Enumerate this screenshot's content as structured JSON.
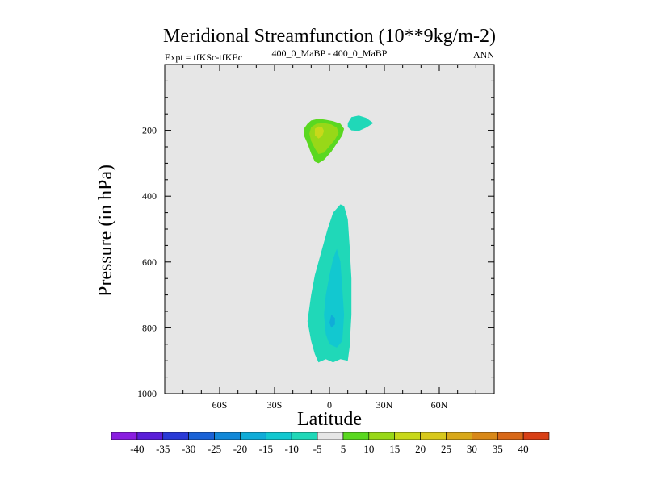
{
  "chart_data": {
    "type": "contour",
    "title": "Meridional Streamfunction (10**9kg/m-2)",
    "subtitle_left": "Expt = tfKSc-tfKEc",
    "subtitle_center": "400_0_MaBP - 400_0_MaBP",
    "subtitle_right": "ANN",
    "xlabel": "Latitude",
    "ylabel": "Pressure (in hPa)",
    "xlim": [
      -90,
      90
    ],
    "ylim": [
      1000,
      0
    ],
    "x_ticks": [
      -60,
      -30,
      0,
      30,
      60
    ],
    "x_tick_labels": [
      "60S",
      "30S",
      "0",
      "30N",
      "60N"
    ],
    "y_ticks": [
      200,
      400,
      600,
      800,
      1000
    ],
    "y_tick_labels": [
      "200",
      "400",
      "600",
      "800",
      "1000"
    ],
    "background_color": "#e6e6e6",
    "colorbar": {
      "levels": [
        -40,
        -35,
        -30,
        -25,
        -20,
        -15,
        -10,
        -5,
        5,
        10,
        15,
        20,
        25,
        30,
        35,
        40
      ],
      "labels": [
        "-40",
        "-35",
        "-30",
        "-25",
        "-20",
        "-15",
        "-10",
        "-5",
        "5",
        "10",
        "15",
        "20",
        "25",
        "30",
        "35",
        "40"
      ],
      "colors": [
        "#8a1ee0",
        "#5a1ed8",
        "#2a3ad6",
        "#1a62d6",
        "#1288d8",
        "#10acd8",
        "#12c8d0",
        "#20d8b8",
        "#e6e6e6",
        "#5ad820",
        "#98d818",
        "#c8d81a",
        "#d8c81c",
        "#d8a81a",
        "#d88818",
        "#d86818",
        "#d84016"
      ]
    },
    "features": [
      {
        "name": "positive-cell",
        "color": "#5ad820",
        "polygon": [
          [
            -12,
            180
          ],
          [
            -10,
            170
          ],
          [
            -6,
            165
          ],
          [
            -2,
            168
          ],
          [
            2,
            172
          ],
          [
            6,
            180
          ],
          [
            8,
            195
          ],
          [
            7,
            215
          ],
          [
            4,
            240
          ],
          [
            1,
            265
          ],
          [
            -3,
            290
          ],
          [
            -6,
            300
          ],
          [
            -8,
            295
          ],
          [
            -10,
            270
          ],
          [
            -12,
            240
          ],
          [
            -14,
            215
          ],
          [
            -14,
            195
          ]
        ]
      },
      {
        "name": "positive-cell-inner",
        "color": "#98d818",
        "polygon": [
          [
            -10,
            190
          ],
          [
            -7,
            180
          ],
          [
            -3,
            178
          ],
          [
            1,
            182
          ],
          [
            4,
            192
          ],
          [
            5,
            208
          ],
          [
            3,
            228
          ],
          [
            0,
            248
          ],
          [
            -3,
            268
          ],
          [
            -6,
            272
          ],
          [
            -8,
            255
          ],
          [
            -10,
            232
          ],
          [
            -11,
            210
          ]
        ]
      },
      {
        "name": "positive-cell-core",
        "color": "#c8d81a",
        "polygon": [
          [
            -8,
            195
          ],
          [
            -6,
            188
          ],
          [
            -4,
            190
          ],
          [
            -3,
            202
          ],
          [
            -4,
            218
          ],
          [
            -6,
            225
          ],
          [
            -8,
            215
          ]
        ]
      },
      {
        "name": "negative-upper-cell",
        "color": "#20d8b8",
        "polygon": [
          [
            10,
            178
          ],
          [
            12,
            160
          ],
          [
            16,
            155
          ],
          [
            20,
            162
          ],
          [
            24,
            178
          ],
          [
            20,
            192
          ],
          [
            16,
            202
          ],
          [
            12,
            200
          ],
          [
            10,
            190
          ]
        ]
      },
      {
        "name": "negative-column",
        "color": "#20d8b8",
        "polygon": [
          [
            6,
            425
          ],
          [
            8,
            430
          ],
          [
            10,
            470
          ],
          [
            11,
            550
          ],
          [
            12,
            650
          ],
          [
            12,
            760
          ],
          [
            11,
            860
          ],
          [
            10,
            900
          ],
          [
            6,
            895
          ],
          [
            2,
            905
          ],
          [
            -2,
            895
          ],
          [
            -6,
            905
          ],
          [
            -8,
            880
          ],
          [
            -10,
            840
          ],
          [
            -12,
            780
          ],
          [
            -10,
            700
          ],
          [
            -8,
            640
          ],
          [
            -4,
            560
          ],
          [
            -1,
            500
          ],
          [
            2,
            450
          ]
        ]
      },
      {
        "name": "negative-column-inner",
        "color": "#12c8d0",
        "polygon": [
          [
            4,
            560
          ],
          [
            6,
            600
          ],
          [
            7,
            680
          ],
          [
            8,
            760
          ],
          [
            7,
            840
          ],
          [
            4,
            860
          ],
          [
            0,
            850
          ],
          [
            -2,
            820
          ],
          [
            -3,
            760
          ],
          [
            -2,
            700
          ],
          [
            0,
            640
          ],
          [
            2,
            590
          ]
        ]
      },
      {
        "name": "negative-column-core",
        "color": "#10acd8",
        "polygon": [
          [
            1,
            760
          ],
          [
            3,
            770
          ],
          [
            3,
            790
          ],
          [
            1,
            800
          ],
          [
            0,
            785
          ]
        ]
      }
    ]
  }
}
